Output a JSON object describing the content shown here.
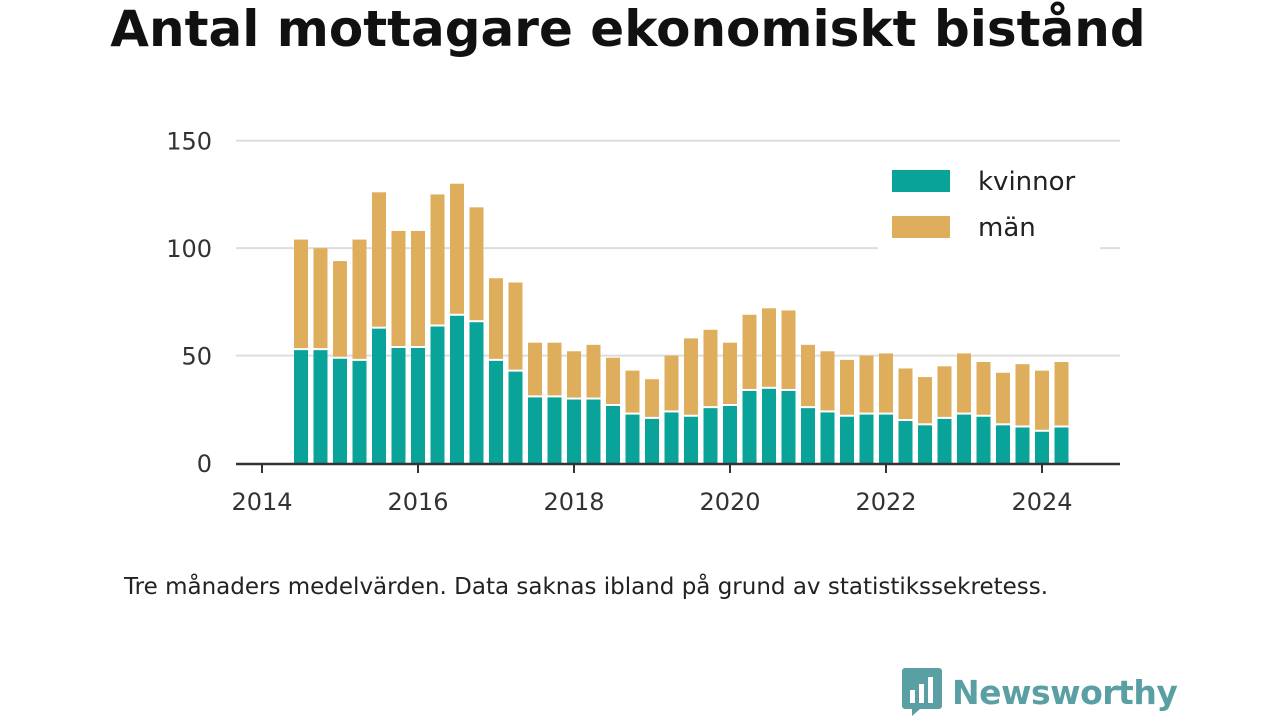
{
  "title": "Antal mottagare ekonomiskt bistånd",
  "subtitle": "Tre månaders medelvärden. Data saknas ibland på grund av statistikssekretess.",
  "brand": {
    "name": "Newsworthy",
    "logo_icon": "bar-chart-speech-bubble-icon"
  },
  "colors": {
    "kvinnor": "#0aa39a",
    "man": "#dfae5c",
    "grid": "#dddddd",
    "axis": "#333333",
    "brand": "#5a9fa3"
  },
  "chart_data": {
    "type": "bar",
    "stacked": true,
    "x": [
      "2014-07",
      "2014-10",
      "2015-01",
      "2015-04",
      "2015-07",
      "2015-10",
      "2016-01",
      "2016-04",
      "2016-07",
      "2016-10",
      "2017-01",
      "2017-04",
      "2017-07",
      "2017-10",
      "2018-01",
      "2018-04",
      "2018-07",
      "2018-10",
      "2019-01",
      "2019-04",
      "2019-07",
      "2019-10",
      "2020-01",
      "2020-04",
      "2020-07",
      "2020-10",
      "2021-01",
      "2021-04",
      "2021-07",
      "2021-10",
      "2022-01",
      "2022-04",
      "2022-07",
      "2022-10",
      "2023-01",
      "2023-04",
      "2023-07",
      "2023-10",
      "2024-01",
      "2024-04"
    ],
    "series": [
      {
        "name": "kvinnor",
        "values": [
          53,
          53,
          49,
          48,
          63,
          54,
          54,
          64,
          69,
          66,
          48,
          43,
          31,
          31,
          30,
          30,
          27,
          23,
          21,
          24,
          22,
          26,
          27,
          34,
          35,
          34,
          26,
          24,
          22,
          23,
          23,
          20,
          18,
          21,
          23,
          22,
          18,
          17,
          15,
          17
        ]
      },
      {
        "name": "män",
        "values": [
          51,
          47,
          45,
          56,
          63,
          54,
          54,
          61,
          61,
          53,
          38,
          41,
          25,
          25,
          22,
          25,
          22,
          20,
          18,
          26,
          36,
          36,
          29,
          35,
          37,
          37,
          29,
          28,
          26,
          27,
          28,
          24,
          22,
          24,
          28,
          25,
          24,
          29,
          28,
          30
        ]
      }
    ],
    "yticks": [
      0,
      50,
      100,
      150
    ],
    "ylim": [
      0,
      155
    ],
    "xticks": [
      {
        "label": "2014",
        "pos": "2014-01"
      },
      {
        "label": "2016",
        "pos": "2016-01"
      },
      {
        "label": "2018",
        "pos": "2018-01"
      },
      {
        "label": "2020",
        "pos": "2020-01"
      },
      {
        "label": "2022",
        "pos": "2022-01"
      },
      {
        "label": "2024",
        "pos": "2024-01"
      }
    ],
    "xlim": [
      "2013-09",
      "2025-01"
    ],
    "grid": "horizontal",
    "legend_position": "top-right"
  }
}
